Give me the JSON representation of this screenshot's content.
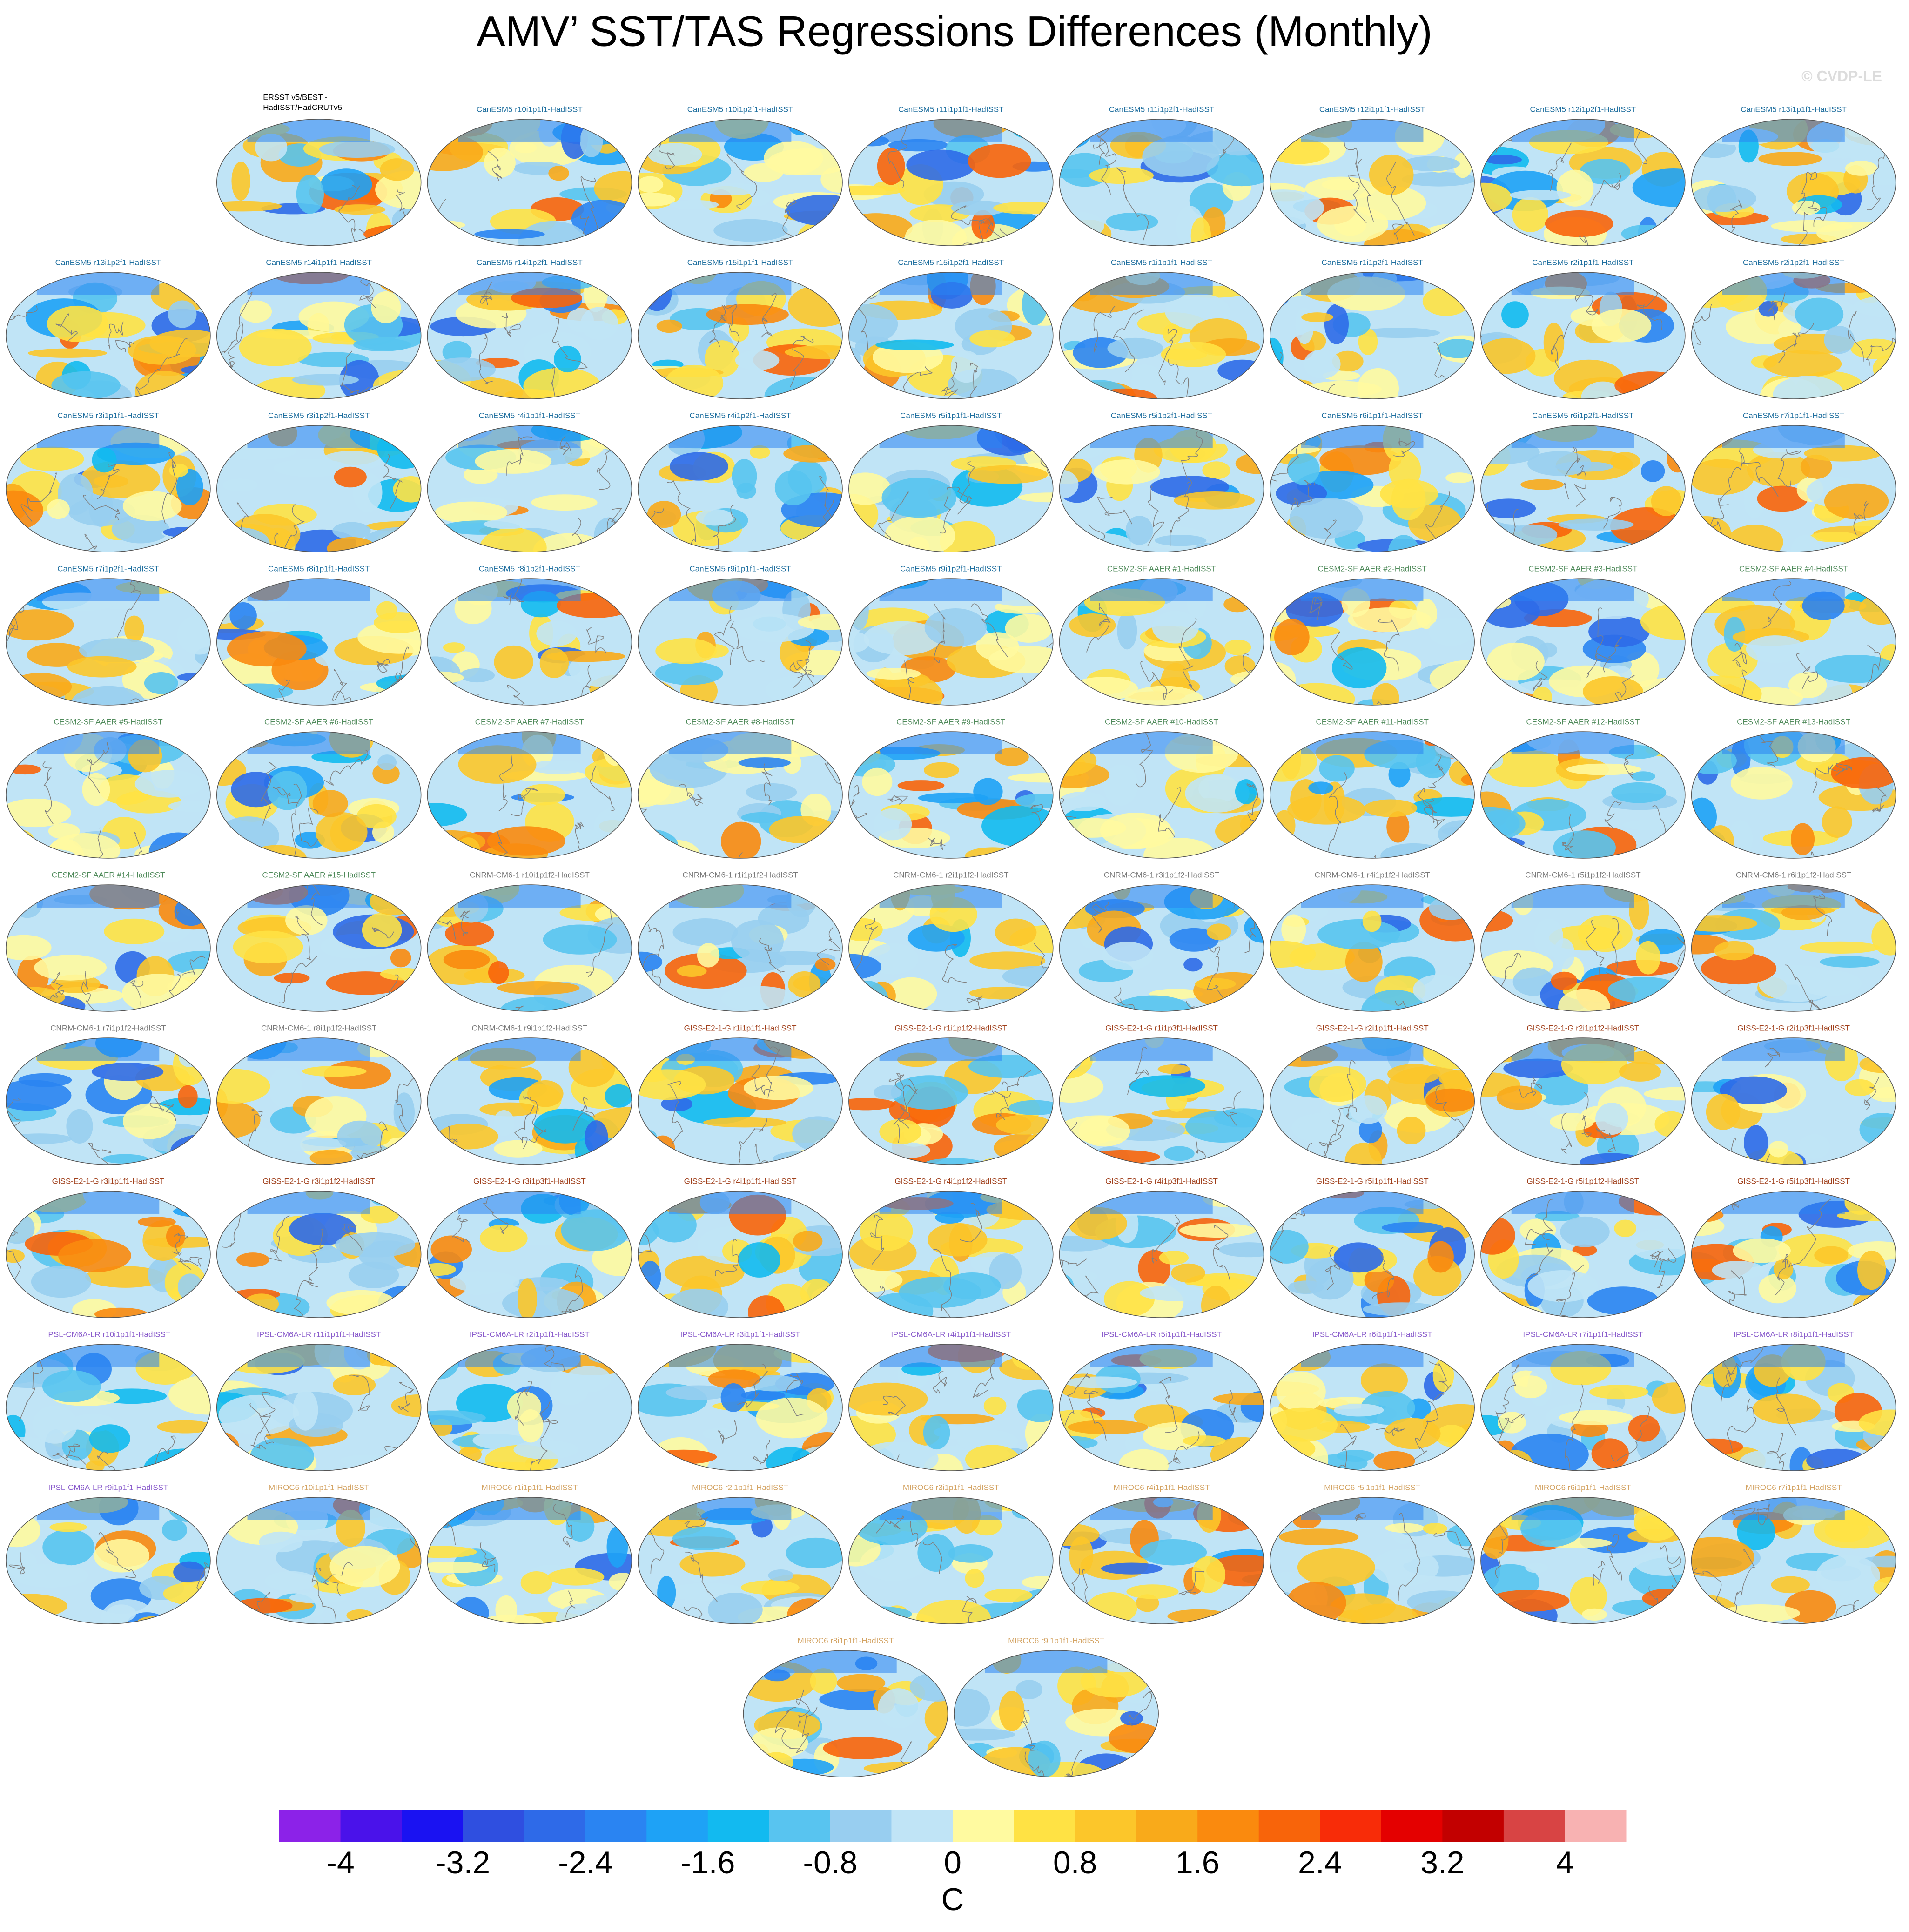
{
  "title": "AMV’ SST/TAS Regressions Differences (Monthly)",
  "watermark": "© CVDP-LE",
  "panels": [
    {
      "title": [
        "ERSST v5/BEST -",
        "HadISST/HadCRUTv5"
      ],
      "color": "#000000"
    },
    {
      "title": "CanESM5 r10i1p1f1-HadISST",
      "color": "#1f6f9f"
    },
    {
      "title": "CanESM5 r10i1p2f1-HadISST",
      "color": "#1f6f9f"
    },
    {
      "title": "CanESM5 r11i1p1f1-HadISST",
      "color": "#1f6f9f"
    },
    {
      "title": "CanESM5 r11i1p2f1-HadISST",
      "color": "#1f6f9f"
    },
    {
      "title": "CanESM5 r12i1p1f1-HadISST",
      "color": "#1f6f9f"
    },
    {
      "title": "CanESM5 r12i1p2f1-HadISST",
      "color": "#1f6f9f"
    },
    {
      "title": "CanESM5 r13i1p1f1-HadISST",
      "color": "#1f6f9f"
    },
    {
      "title": "CanESM5 r13i1p2f1-HadISST",
      "color": "#1f6f9f"
    },
    {
      "title": "CanESM5 r14i1p1f1-HadISST",
      "color": "#1f6f9f"
    },
    {
      "title": "CanESM5 r14i1p2f1-HadISST",
      "color": "#1f6f9f"
    },
    {
      "title": "CanESM5 r15i1p1f1-HadISST",
      "color": "#1f6f9f"
    },
    {
      "title": "CanESM5 r15i1p2f1-HadISST",
      "color": "#1f6f9f"
    },
    {
      "title": "CanESM5 r1i1p1f1-HadISST",
      "color": "#1f6f9f"
    },
    {
      "title": "CanESM5 r1i1p2f1-HadISST",
      "color": "#1f6f9f"
    },
    {
      "title": "CanESM5 r2i1p1f1-HadISST",
      "color": "#1f6f9f"
    },
    {
      "title": "CanESM5 r2i1p2f1-HadISST",
      "color": "#1f6f9f"
    },
    {
      "title": "CanESM5 r3i1p1f1-HadISST",
      "color": "#1f6f9f"
    },
    {
      "title": "CanESM5 r3i1p2f1-HadISST",
      "color": "#1f6f9f"
    },
    {
      "title": "CanESM5 r4i1p1f1-HadISST",
      "color": "#1f6f9f"
    },
    {
      "title": "CanESM5 r4i1p2f1-HadISST",
      "color": "#1f6f9f"
    },
    {
      "title": "CanESM5 r5i1p1f1-HadISST",
      "color": "#1f6f9f"
    },
    {
      "title": "CanESM5 r5i1p2f1-HadISST",
      "color": "#1f6f9f"
    },
    {
      "title": "CanESM5 r6i1p1f1-HadISST",
      "color": "#1f6f9f"
    },
    {
      "title": "CanESM5 r6i1p2f1-HadISST",
      "color": "#1f6f9f"
    },
    {
      "title": "CanESM5 r7i1p1f1-HadISST",
      "color": "#1f6f9f"
    },
    {
      "title": "CanESM5 r7i1p2f1-HadISST",
      "color": "#1f6f9f"
    },
    {
      "title": "CanESM5 r8i1p1f1-HadISST",
      "color": "#1f6f9f"
    },
    {
      "title": "CanESM5 r8i1p2f1-HadISST",
      "color": "#1f6f9f"
    },
    {
      "title": "CanESM5 r9i1p1f1-HadISST",
      "color": "#1f6f9f"
    },
    {
      "title": "CanESM5 r9i1p2f1-HadISST",
      "color": "#1f6f9f"
    },
    {
      "title": "CESM2-SF AAER #1-HadISST",
      "color": "#4f8a5a"
    },
    {
      "title": "CESM2-SF AAER #2-HadISST",
      "color": "#4f8a5a"
    },
    {
      "title": "CESM2-SF AAER #3-HadISST",
      "color": "#4f8a5a"
    },
    {
      "title": "CESM2-SF AAER #4-HadISST",
      "color": "#4f8a5a"
    },
    {
      "title": "CESM2-SF AAER #5-HadISST",
      "color": "#4f8a5a"
    },
    {
      "title": "CESM2-SF AAER #6-HadISST",
      "color": "#4f8a5a"
    },
    {
      "title": "CESM2-SF AAER #7-HadISST",
      "color": "#4f8a5a"
    },
    {
      "title": "CESM2-SF AAER #8-HadISST",
      "color": "#4f8a5a"
    },
    {
      "title": "CESM2-SF AAER #9-HadISST",
      "color": "#4f8a5a"
    },
    {
      "title": "CESM2-SF AAER #10-HadISST",
      "color": "#4f8a5a"
    },
    {
      "title": "CESM2-SF AAER #11-HadISST",
      "color": "#4f8a5a"
    },
    {
      "title": "CESM2-SF AAER #12-HadISST",
      "color": "#4f8a5a"
    },
    {
      "title": "CESM2-SF AAER #13-HadISST",
      "color": "#4f8a5a"
    },
    {
      "title": "CESM2-SF AAER #14-HadISST",
      "color": "#4f8a5a"
    },
    {
      "title": "CESM2-SF AAER #15-HadISST",
      "color": "#4f8a5a"
    },
    {
      "title": "CNRM-CM6-1 r10i1p1f2-HadISST",
      "color": "#7a7a7a"
    },
    {
      "title": "CNRM-CM6-1 r1i1p1f2-HadISST",
      "color": "#7a7a7a"
    },
    {
      "title": "CNRM-CM6-1 r2i1p1f2-HadISST",
      "color": "#7a7a7a"
    },
    {
      "title": "CNRM-CM6-1 r3i1p1f2-HadISST",
      "color": "#7a7a7a"
    },
    {
      "title": "CNRM-CM6-1 r4i1p1f2-HadISST",
      "color": "#7a7a7a"
    },
    {
      "title": "CNRM-CM6-1 r5i1p1f2-HadISST",
      "color": "#7a7a7a"
    },
    {
      "title": "CNRM-CM6-1 r6i1p1f2-HadISST",
      "color": "#7a7a7a"
    },
    {
      "title": "CNRM-CM6-1 r7i1p1f2-HadISST",
      "color": "#7a7a7a"
    },
    {
      "title": "CNRM-CM6-1 r8i1p1f2-HadISST",
      "color": "#7a7a7a"
    },
    {
      "title": "CNRM-CM6-1 r9i1p1f2-HadISST",
      "color": "#7a7a7a"
    },
    {
      "title": "GISS-E2-1-G r1i1p1f1-HadISST",
      "color": "#a0401c"
    },
    {
      "title": "GISS-E2-1-G r1i1p1f2-HadISST",
      "color": "#a0401c"
    },
    {
      "title": "GISS-E2-1-G r1i1p3f1-HadISST",
      "color": "#a0401c"
    },
    {
      "title": "GISS-E2-1-G r2i1p1f1-HadISST",
      "color": "#a0401c"
    },
    {
      "title": "GISS-E2-1-G r2i1p1f2-HadISST",
      "color": "#a0401c"
    },
    {
      "title": "GISS-E2-1-G r2i1p3f1-HadISST",
      "color": "#a0401c"
    },
    {
      "title": "GISS-E2-1-G r3i1p1f1-HadISST",
      "color": "#a0401c"
    },
    {
      "title": "GISS-E2-1-G r3i1p1f2-HadISST",
      "color": "#a0401c"
    },
    {
      "title": "GISS-E2-1-G r3i1p3f1-HadISST",
      "color": "#a0401c"
    },
    {
      "title": "GISS-E2-1-G r4i1p1f1-HadISST",
      "color": "#a0401c"
    },
    {
      "title": "GISS-E2-1-G r4i1p1f2-HadISST",
      "color": "#a0401c"
    },
    {
      "title": "GISS-E2-1-G r4i1p3f1-HadISST",
      "color": "#a0401c"
    },
    {
      "title": "GISS-E2-1-G r5i1p1f1-HadISST",
      "color": "#a0401c"
    },
    {
      "title": "GISS-E2-1-G r5i1p1f2-HadISST",
      "color": "#a0401c"
    },
    {
      "title": "GISS-E2-1-G r5i1p3f1-HadISST",
      "color": "#a0401c"
    },
    {
      "title": "IPSL-CM6A-LR r10i1p1f1-HadISST",
      "color": "#8a5ccc"
    },
    {
      "title": "IPSL-CM6A-LR r11i1p1f1-HadISST",
      "color": "#8a5ccc"
    },
    {
      "title": "IPSL-CM6A-LR r2i1p1f1-HadISST",
      "color": "#8a5ccc"
    },
    {
      "title": "IPSL-CM6A-LR r3i1p1f1-HadISST",
      "color": "#8a5ccc"
    },
    {
      "title": "IPSL-CM6A-LR r4i1p1f1-HadISST",
      "color": "#8a5ccc"
    },
    {
      "title": "IPSL-CM6A-LR r5i1p1f1-HadISST",
      "color": "#8a5ccc"
    },
    {
      "title": "IPSL-CM6A-LR r6i1p1f1-HadISST",
      "color": "#8a5ccc"
    },
    {
      "title": "IPSL-CM6A-LR r7i1p1f1-HadISST",
      "color": "#8a5ccc"
    },
    {
      "title": "IPSL-CM6A-LR r8i1p1f1-HadISST",
      "color": "#8a5ccc"
    },
    {
      "title": "IPSL-CM6A-LR r9i1p1f1-HadISST",
      "color": "#8a5ccc"
    },
    {
      "title": "MIROC6 r10i1p1f1-HadISST",
      "color": "#d4a464"
    },
    {
      "title": "MIROC6 r1i1p1f1-HadISST",
      "color": "#d4a464"
    },
    {
      "title": "MIROC6 r2i1p1f1-HadISST",
      "color": "#d4a464"
    },
    {
      "title": "MIROC6 r3i1p1f1-HadISST",
      "color": "#d4a464"
    },
    {
      "title": "MIROC6 r4i1p1f1-HadISST",
      "color": "#d4a464"
    },
    {
      "title": "MIROC6 r5i1p1f1-HadISST",
      "color": "#d4a464"
    },
    {
      "title": "MIROC6 r6i1p1f1-HadISST",
      "color": "#d4a464"
    },
    {
      "title": "MIROC6 r7i1p1f1-HadISST",
      "color": "#d4a464"
    },
    {
      "title": "MIROC6 r8i1p1f1-HadISST",
      "color": "#d4a464"
    },
    {
      "title": "MIROC6 r9i1p1f1-HadISST",
      "color": "#d4a464"
    }
  ],
  "colorbar": {
    "levels": [
      -4,
      -3.6,
      -3.2,
      -2.8,
      -2.4,
      -2,
      -1.6,
      -1.2,
      -0.8,
      -0.4,
      0,
      0.4,
      0.8,
      1.2,
      1.6,
      2,
      2.4,
      2.8,
      3.2,
      3.6,
      4
    ],
    "colors": [
      "#8c22e8",
      "#4a12ea",
      "#1a12f2",
      "#2f4fe0",
      "#2e6ae8",
      "#2a84f2",
      "#1ea2f6",
      "#12baf0",
      "#58c4f0",
      "#98cef0",
      "#c0e4f6",
      "#fffaa0",
      "#ffe244",
      "#fcc62a",
      "#f9aa1a",
      "#fa8a0e",
      "#f8640a",
      "#f82c08",
      "#e40000",
      "#c20000",
      "#d84444",
      "#f8b2b2"
    ],
    "ticks": [
      -4,
      -3.2,
      -2.4,
      -1.6,
      -0.8,
      0,
      0.8,
      1.6,
      2.4,
      3.2,
      4
    ],
    "unit": "C"
  }
}
